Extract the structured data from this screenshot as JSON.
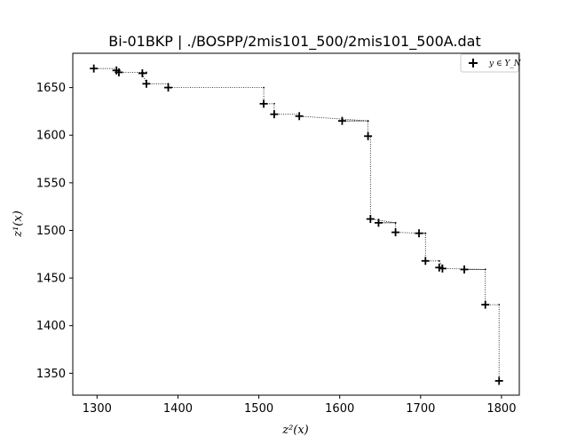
{
  "chart_data": {
    "type": "scatter",
    "title": "Bi-01BKP | ./BOSPP/2mis101_500/2mis101_500A.dat",
    "xlabel": "z²(x)",
    "ylabel": "z¹(x)",
    "xlim": [
      1270,
      1822
    ],
    "ylim": [
      1327,
      1686
    ],
    "xticks": [
      1300,
      1400,
      1500,
      1600,
      1700,
      1800
    ],
    "yticks": [
      1350,
      1400,
      1450,
      1500,
      1550,
      1600,
      1650
    ],
    "xtick_labels": [
      "1300",
      "1400",
      "1500",
      "1600",
      "1700",
      "1800"
    ],
    "ytick_labels": [
      "1350",
      "1400",
      "1450",
      "1500",
      "1550",
      "1600",
      "1650"
    ],
    "legend": {
      "label": "y ∈ Y_N",
      "location": "top-right"
    },
    "series": [
      {
        "name": "y ∈ Y_N",
        "marker": "+",
        "points": [
          [
            1296,
            1670
          ],
          [
            1324,
            1668
          ],
          [
            1327,
            1666
          ],
          [
            1356,
            1665
          ],
          [
            1361,
            1654
          ],
          [
            1388,
            1650
          ],
          [
            1506,
            1633
          ],
          [
            1519,
            1622
          ],
          [
            1550,
            1620
          ],
          [
            1603,
            1615
          ],
          [
            1635,
            1599
          ],
          [
            1638,
            1512
          ],
          [
            1648,
            1508
          ],
          [
            1669,
            1498
          ],
          [
            1698,
            1497
          ],
          [
            1706,
            1468
          ],
          [
            1723,
            1461
          ],
          [
            1727,
            1460
          ],
          [
            1754,
            1459
          ],
          [
            1780,
            1422
          ],
          [
            1797,
            1342
          ]
        ]
      }
    ],
    "frontier": [
      [
        1296,
        1670
      ],
      [
        1324,
        1670
      ],
      [
        1324,
        1668
      ],
      [
        1327,
        1668
      ],
      [
        1327,
        1666
      ],
      [
        1361,
        1666
      ],
      [
        1361,
        1665
      ],
      [
        1356,
        1665
      ],
      [
        1361,
        1654
      ],
      [
        1388,
        1654
      ],
      [
        1388,
        1650
      ],
      [
        1506,
        1650
      ],
      [
        1506,
        1633
      ],
      [
        1519,
        1633
      ],
      [
        1519,
        1622
      ],
      [
        1550,
        1622
      ],
      [
        1550,
        1620
      ],
      [
        1635,
        1615
      ],
      [
        1603,
        1615
      ],
      [
        1635,
        1615
      ],
      [
        1635,
        1599
      ],
      [
        1638,
        1599
      ],
      [
        1638,
        1512
      ],
      [
        1669,
        1508
      ],
      [
        1648,
        1508
      ],
      [
        1669,
        1508
      ],
      [
        1669,
        1498
      ],
      [
        1706,
        1497
      ],
      [
        1698,
        1497
      ],
      [
        1706,
        1497
      ],
      [
        1706,
        1468
      ],
      [
        1723,
        1468
      ],
      [
        1727,
        1461
      ],
      [
        1727,
        1460
      ],
      [
        1780,
        1459
      ],
      [
        1754,
        1459
      ],
      [
        1780,
        1459
      ],
      [
        1780,
        1422
      ],
      [
        1797,
        1422
      ],
      [
        1797,
        1342
      ]
    ]
  }
}
